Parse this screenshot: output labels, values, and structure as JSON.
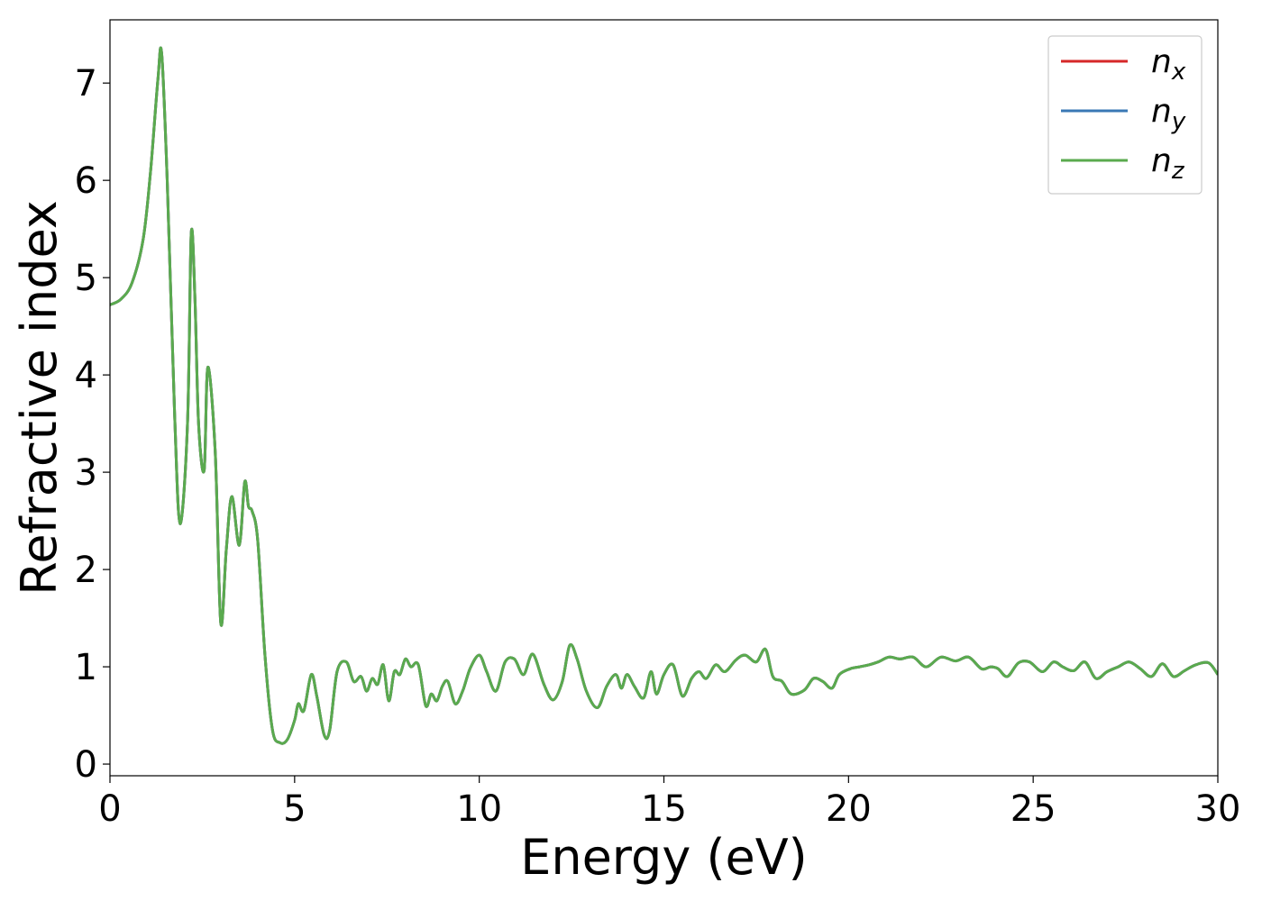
{
  "chart_data": {
    "type": "line",
    "title": "",
    "xlabel": "Energy (eV)",
    "ylabel": "Refractive index",
    "xlim": [
      0,
      30
    ],
    "ylim": [
      -0.12,
      7.65
    ],
    "xticks": [
      0,
      5,
      10,
      15,
      20,
      25,
      30
    ],
    "yticks": [
      0,
      1,
      2,
      3,
      4,
      5,
      6,
      7
    ],
    "grid": false,
    "legend_position": "top-right",
    "series": [
      {
        "name_base": "n",
        "name_sub": "x",
        "color": "#d62728",
        "x": [
          0,
          0.3,
          0.6,
          0.9,
          1.1,
          1.3,
          1.4,
          1.55,
          1.75,
          1.9,
          2.1,
          2.2,
          2.3,
          2.4,
          2.55,
          2.65,
          2.85,
          3.0,
          3.15,
          3.3,
          3.5,
          3.65,
          3.75,
          3.85,
          4.0,
          4.2,
          4.4,
          4.6,
          4.8,
          5.0,
          5.1,
          5.25,
          5.45,
          5.6,
          5.8,
          5.95,
          6.15,
          6.4,
          6.6,
          6.8,
          6.95,
          7.1,
          7.25,
          7.4,
          7.55,
          7.7,
          7.85,
          8.0,
          8.15,
          8.35,
          8.55,
          8.7,
          8.85,
          9.0,
          9.15,
          9.35,
          9.55,
          9.75,
          10.0,
          10.2,
          10.45,
          10.7,
          10.95,
          11.2,
          11.45,
          11.75,
          12.0,
          12.25,
          12.45,
          12.65,
          12.9,
          13.2,
          13.45,
          13.7,
          13.85,
          14.0,
          14.2,
          14.45,
          14.65,
          14.8,
          15.0,
          15.25,
          15.5,
          15.75,
          15.95,
          16.15,
          16.4,
          16.65,
          16.95,
          17.2,
          17.5,
          17.75,
          17.95,
          18.2,
          18.45,
          18.8,
          19.05,
          19.3,
          19.55,
          19.75,
          20.05,
          20.3,
          20.55,
          20.8,
          21.1,
          21.4,
          21.75,
          22.1,
          22.5,
          22.9,
          23.25,
          23.6,
          23.85,
          24.05,
          24.3,
          24.6,
          24.9,
          25.25,
          25.55,
          25.8,
          26.1,
          26.4,
          26.7,
          27.0,
          27.3,
          27.6,
          27.9,
          28.2,
          28.5,
          28.8,
          29.1,
          29.4,
          29.75,
          30.0
        ],
        "y": [
          4.72,
          4.78,
          4.95,
          5.4,
          6.1,
          7.05,
          7.3,
          6.0,
          3.6,
          2.47,
          3.5,
          5.45,
          4.8,
          3.5,
          3.02,
          4.08,
          3.2,
          1.45,
          2.2,
          2.75,
          2.25,
          2.9,
          2.65,
          2.6,
          2.3,
          1.1,
          0.35,
          0.22,
          0.25,
          0.45,
          0.62,
          0.55,
          0.92,
          0.7,
          0.3,
          0.35,
          0.95,
          1.05,
          0.85,
          0.9,
          0.75,
          0.88,
          0.82,
          1.02,
          0.65,
          0.95,
          0.92,
          1.08,
          1.0,
          1.02,
          0.6,
          0.72,
          0.65,
          0.8,
          0.85,
          0.62,
          0.75,
          0.98,
          1.12,
          0.95,
          0.75,
          1.05,
          1.08,
          0.92,
          1.13,
          0.82,
          0.66,
          0.85,
          1.22,
          1.08,
          0.75,
          0.58,
          0.8,
          0.92,
          0.78,
          0.92,
          0.8,
          0.68,
          0.95,
          0.72,
          0.92,
          1.02,
          0.7,
          0.88,
          0.95,
          0.88,
          1.02,
          0.95,
          1.07,
          1.12,
          1.05,
          1.18,
          0.9,
          0.85,
          0.72,
          0.76,
          0.88,
          0.85,
          0.78,
          0.92,
          0.98,
          1.0,
          1.02,
          1.05,
          1.1,
          1.08,
          1.1,
          1.0,
          1.1,
          1.06,
          1.1,
          0.98,
          1.0,
          0.98,
          0.9,
          1.04,
          1.05,
          0.95,
          1.05,
          1.0,
          0.96,
          1.05,
          0.88,
          0.95,
          1.0,
          1.05,
          0.98,
          0.9,
          1.03,
          0.9,
          0.96,
          1.02,
          1.04,
          0.92
        ],
        "stroke_width": 3
      },
      {
        "name_base": "n",
        "name_sub": "y",
        "color": "#3a78b5",
        "same_as_previous": true,
        "stroke_width": 3
      },
      {
        "name_base": "n",
        "name_sub": "z",
        "color": "#5aaa4e",
        "same_as_previous": true,
        "stroke_width": 3
      }
    ]
  }
}
